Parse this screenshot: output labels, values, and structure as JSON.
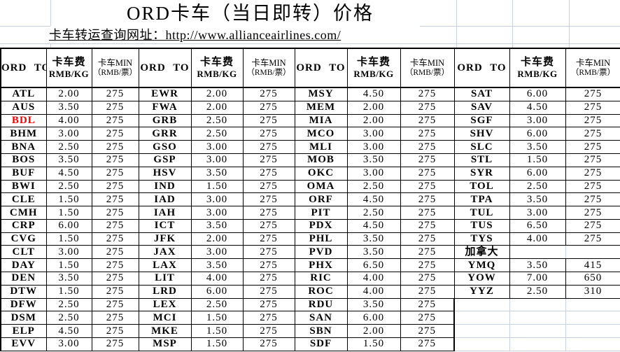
{
  "title": "ORD卡车（当日即转）价格",
  "link": {
    "text": "卡车转运查询网址：http://www.allianceairlines.com/"
  },
  "colors": {
    "highlight": "#ff0000",
    "gridline": "#c8d1e0",
    "table_border": "#000000"
  },
  "table": {
    "header": {
      "dest": "ORD TO",
      "fee_title": "卡车费",
      "fee_unit": "RMB/KG",
      "min_title": "卡车MIN",
      "min_unit": "（RMB/票）"
    },
    "section_label": "加拿大",
    "groups": [
      {
        "rows": [
          {
            "code": "ATL",
            "fee": "2.00",
            "min": "275"
          },
          {
            "code": "AUS",
            "fee": "3.50",
            "min": "275"
          },
          {
            "code": "BDL",
            "fee": "4.00",
            "min": "275",
            "red": true
          },
          {
            "code": "BHM",
            "fee": "3.00",
            "min": "275"
          },
          {
            "code": "BNA",
            "fee": "2.50",
            "min": "275"
          },
          {
            "code": "BOS",
            "fee": "3.50",
            "min": "275"
          },
          {
            "code": "BUF",
            "fee": "4.50",
            "min": "275"
          },
          {
            "code": "BWI",
            "fee": "2.50",
            "min": "275"
          },
          {
            "code": "CLE",
            "fee": "1.50",
            "min": "275"
          },
          {
            "code": "CMH",
            "fee": "1.50",
            "min": "275"
          },
          {
            "code": "CRP",
            "fee": "6.00",
            "min": "275"
          },
          {
            "code": "CVG",
            "fee": "1.50",
            "min": "275"
          },
          {
            "code": "CLT",
            "fee": "3.00",
            "min": "275"
          },
          {
            "code": "DAY",
            "fee": "1.50",
            "min": "275"
          },
          {
            "code": "DEN",
            "fee": "3.50",
            "min": "275"
          },
          {
            "code": "DTW",
            "fee": "1.50",
            "min": "275"
          },
          {
            "code": "DFW",
            "fee": "2.50",
            "min": "275"
          },
          {
            "code": "DSM",
            "fee": "2.50",
            "min": "275"
          },
          {
            "code": "ELP",
            "fee": "4.50",
            "min": "275"
          },
          {
            "code": "EVV",
            "fee": "3.00",
            "min": "275"
          }
        ]
      },
      {
        "rows": [
          {
            "code": "EWR",
            "fee": "2.00",
            "min": "275"
          },
          {
            "code": "FWA",
            "fee": "2.00",
            "min": "275"
          },
          {
            "code": "GRB",
            "fee": "2.50",
            "min": "275"
          },
          {
            "code": "GRR",
            "fee": "2.50",
            "min": "275"
          },
          {
            "code": "GSO",
            "fee": "3.00",
            "min": "275"
          },
          {
            "code": "GSP",
            "fee": "3.00",
            "min": "275"
          },
          {
            "code": "HSV",
            "fee": "3.50",
            "min": "275"
          },
          {
            "code": "IND",
            "fee": "1.50",
            "min": "275"
          },
          {
            "code": "IAD",
            "fee": "3.00",
            "min": "275"
          },
          {
            "code": "IAH",
            "fee": "3.00",
            "min": "275"
          },
          {
            "code": "ICT",
            "fee": "3.50",
            "min": "275"
          },
          {
            "code": "JFK",
            "fee": "2.00",
            "min": "275"
          },
          {
            "code": "JAX",
            "fee": "3.00",
            "min": "275"
          },
          {
            "code": "LAX",
            "fee": "3.50",
            "min": "275"
          },
          {
            "code": "LIT",
            "fee": "4.00",
            "min": "275"
          },
          {
            "code": "LRD",
            "fee": "6.00",
            "min": "275"
          },
          {
            "code": "LEX",
            "fee": "2.50",
            "min": "275"
          },
          {
            "code": "MCI",
            "fee": "1.50",
            "min": "275"
          },
          {
            "code": "MKE",
            "fee": "1.50",
            "min": "275"
          },
          {
            "code": "MSP",
            "fee": "1.50",
            "min": "275"
          }
        ]
      },
      {
        "rows": [
          {
            "code": "MSY",
            "fee": "4.50",
            "min": "275"
          },
          {
            "code": "MEM",
            "fee": "2.00",
            "min": "275"
          },
          {
            "code": "MIA",
            "fee": "2.00",
            "min": "275"
          },
          {
            "code": "MCO",
            "fee": "3.00",
            "min": "275"
          },
          {
            "code": "MLI",
            "fee": "3.00",
            "min": "275"
          },
          {
            "code": "MOB",
            "fee": "3.50",
            "min": "275"
          },
          {
            "code": "OKC",
            "fee": "3.00",
            "min": "275"
          },
          {
            "code": "OMA",
            "fee": "2.50",
            "min": "275"
          },
          {
            "code": "ORF",
            "fee": "4.50",
            "min": "275"
          },
          {
            "code": "PIT",
            "fee": "2.50",
            "min": "275"
          },
          {
            "code": "PDX",
            "fee": "4.50",
            "min": "275"
          },
          {
            "code": "PHL",
            "fee": "3.50",
            "min": "275"
          },
          {
            "code": "PVD",
            "fee": "3.50",
            "min": "275"
          },
          {
            "code": "PHX",
            "fee": "6.50",
            "min": "275"
          },
          {
            "code": "RIC",
            "fee": "4.00",
            "min": "275"
          },
          {
            "code": "ROC",
            "fee": "4.00",
            "min": "275"
          },
          {
            "code": "RDU",
            "fee": "3.50",
            "min": "275"
          },
          {
            "code": "SAN",
            "fee": "6.00",
            "min": "275"
          },
          {
            "code": "SBN",
            "fee": "2.00",
            "min": "275"
          },
          {
            "code": "SDF",
            "fee": "1.50",
            "min": "275"
          }
        ]
      },
      {
        "rows": [
          {
            "code": "SAT",
            "fee": "6.00",
            "min": "275"
          },
          {
            "code": "SAV",
            "fee": "4.50",
            "min": "275"
          },
          {
            "code": "SGF",
            "fee": "3.00",
            "min": "275"
          },
          {
            "code": "SHV",
            "fee": "6.00",
            "min": "275"
          },
          {
            "code": "SLC",
            "fee": "3.50",
            "min": "275"
          },
          {
            "code": "STL",
            "fee": "1.50",
            "min": "275"
          },
          {
            "code": "SYR",
            "fee": "6.00",
            "min": "275"
          },
          {
            "code": "TOL",
            "fee": "2.50",
            "min": "275"
          },
          {
            "code": "TPA",
            "fee": "3.50",
            "min": "275"
          },
          {
            "code": "TUL",
            "fee": "3.00",
            "min": "275"
          },
          {
            "code": "TUS",
            "fee": "6.50",
            "min": "275"
          },
          {
            "code": "TYS",
            "fee": "4.00",
            "min": "275"
          },
          {
            "code": "加拿大",
            "fee": "",
            "min": "",
            "type": "section"
          },
          {
            "code": "YMQ",
            "fee": "3.50",
            "min": "415"
          },
          {
            "code": "YOW",
            "fee": "7.00",
            "min": "650"
          },
          {
            "code": "YYZ",
            "fee": "2.50",
            "min": "310"
          },
          {
            "type": "ghost"
          },
          {
            "type": "ghost"
          },
          {
            "type": "ghost"
          },
          {
            "type": "ghost"
          }
        ]
      }
    ]
  }
}
